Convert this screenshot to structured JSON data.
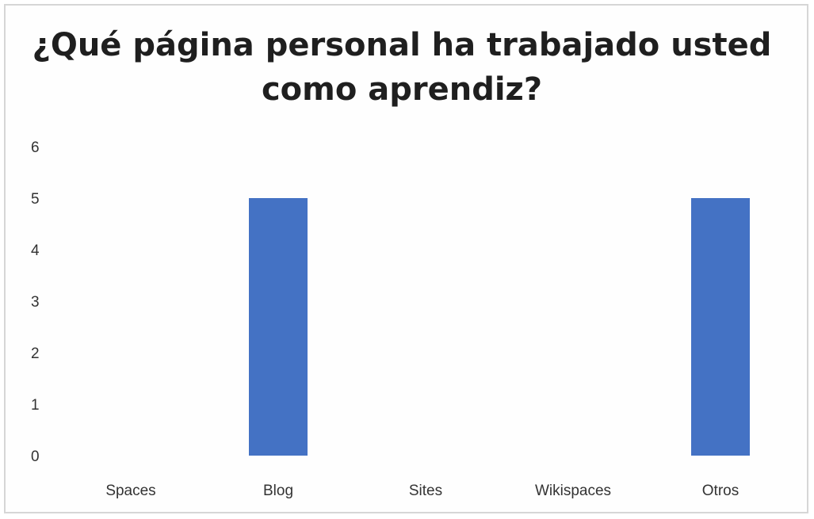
{
  "chart_data": {
    "type": "bar",
    "title": "¿Qué página personal ha trabajado usted como aprendiz?",
    "categories": [
      "Spaces",
      "Blog",
      "Sites",
      "Wikispaces",
      "Otros"
    ],
    "values": [
      0,
      5,
      0,
      0,
      5
    ],
    "ylim": [
      0,
      6
    ],
    "yticks": [
      "0",
      "1",
      "2",
      "3",
      "4",
      "5",
      "6"
    ],
    "xlabel": "",
    "ylabel": "",
    "grid": false,
    "legend": "none",
    "bar_color": "#4472c4"
  }
}
